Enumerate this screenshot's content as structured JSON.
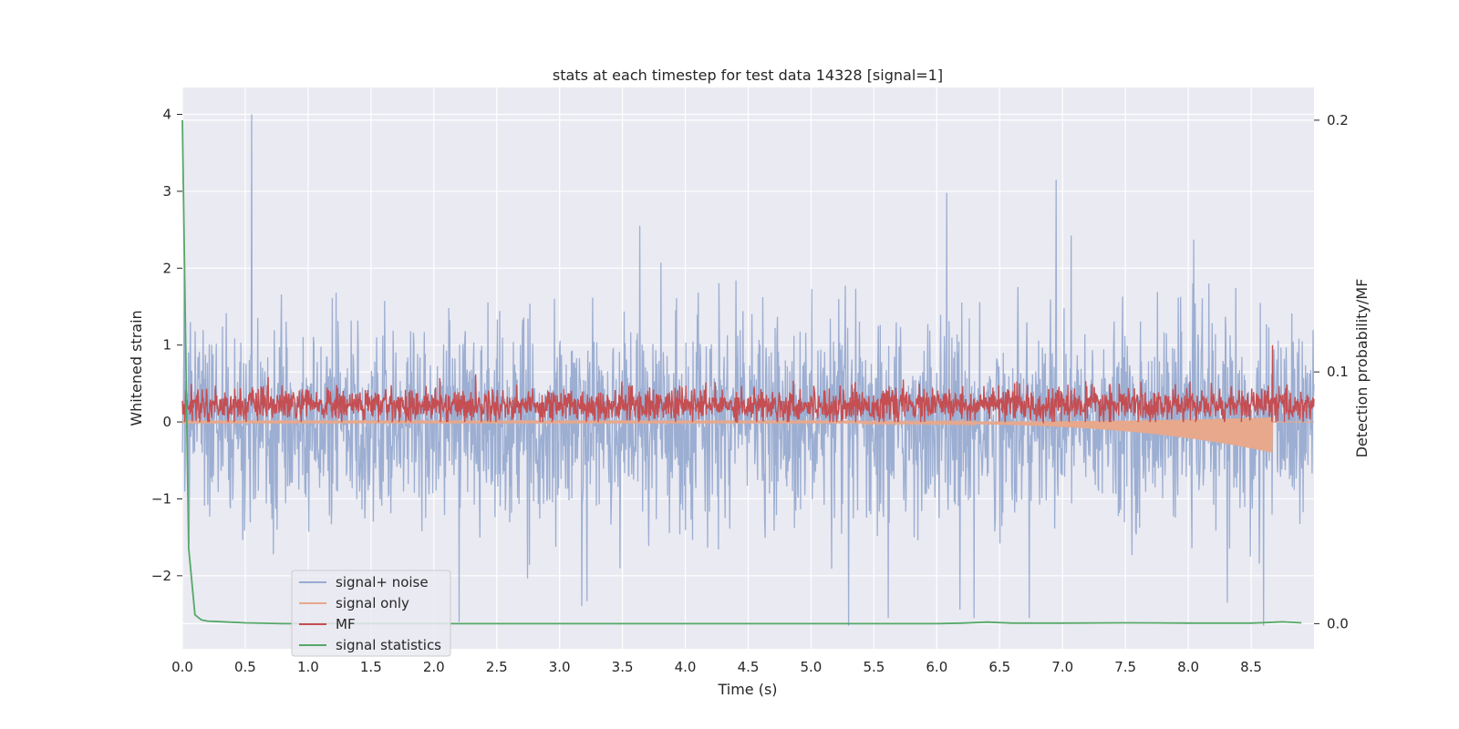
{
  "chart_data": {
    "type": "line",
    "title": "stats at each timestep for test data 14328 [signal=1]",
    "xlabel": "Time (s)",
    "ylabel": "Whitened strain",
    "y2label": "Detection probability/MF",
    "xlim": [
      0,
      9.0
    ],
    "ylim": [
      -2.95,
      4.35
    ],
    "y2lim": [
      -0.01,
      0.213
    ],
    "xticks": [
      0.0,
      0.5,
      1.0,
      1.5,
      2.0,
      2.5,
      3.0,
      3.5,
      4.0,
      4.5,
      5.0,
      5.5,
      6.0,
      6.5,
      7.0,
      7.5,
      8.0,
      8.5
    ],
    "xtick_labels": [
      "0.0",
      "0.5",
      "1.0",
      "1.5",
      "2.0",
      "2.5",
      "3.0",
      "3.5",
      "4.0",
      "4.5",
      "5.0",
      "5.5",
      "6.0",
      "6.5",
      "7.0",
      "7.5",
      "8.0",
      "8.5"
    ],
    "yticks": [
      -2,
      -1,
      0,
      1,
      2,
      3,
      4
    ],
    "ytick_labels": [
      "−2",
      "−1",
      "0",
      "1",
      "2",
      "3",
      "4"
    ],
    "y2ticks": [
      0.0,
      0.1,
      0.2
    ],
    "y2tick_labels": [
      "0.0",
      "0.1",
      "0.2"
    ],
    "grid": true,
    "legend_position": "lower-left",
    "colors": {
      "background": "#eaeaf2",
      "grid": "#ffffff",
      "signal_noise": "#98abd0",
      "signal_only": "#e7a88c",
      "mf": "#c44e52",
      "stats": "#55a868"
    },
    "series": [
      {
        "name": "signal+ noise",
        "axis": "left",
        "description_peaks": [
          [
            0.55,
            4.0
          ],
          [
            6.95,
            3.15
          ],
          [
            6.08,
            2.98
          ],
          [
            5.3,
            -2.65
          ],
          [
            8.6,
            -2.65
          ],
          [
            2.2,
            -2.6
          ]
        ],
        "envelope": {
          "upper_typical": 1.5,
          "lower_typical": -1.6
        }
      },
      {
        "name": "signal only",
        "axis": "left",
        "chirp": {
          "start": 5.4,
          "end": 8.67,
          "min_amplitude": 0.02,
          "max_amplitude": -0.4
        }
      },
      {
        "name": "MF",
        "axis": "left",
        "band": {
          "low": 0.0,
          "high": 0.55
        },
        "peak": [
          8.67,
          1.0
        ]
      },
      {
        "name": "signal statistics",
        "axis": "right",
        "x": [
          0.0,
          0.05,
          0.1,
          0.15,
          0.2,
          0.3,
          0.5,
          0.8,
          1.0,
          2.0,
          3.0,
          4.0,
          5.0,
          6.0,
          6.2,
          6.4,
          6.6,
          7.0,
          7.5,
          8.0,
          8.5,
          8.6,
          8.75,
          8.9
        ],
        "y": [
          0.2,
          0.03,
          0.0035,
          0.0015,
          0.001,
          0.0008,
          0.0003,
          0.0,
          0.0,
          0.0,
          0.0,
          0.0,
          0.0,
          0.0,
          0.0002,
          0.0006,
          0.0002,
          0.0002,
          0.0003,
          0.0002,
          0.0002,
          0.0004,
          0.0007,
          0.0003
        ]
      }
    ]
  }
}
